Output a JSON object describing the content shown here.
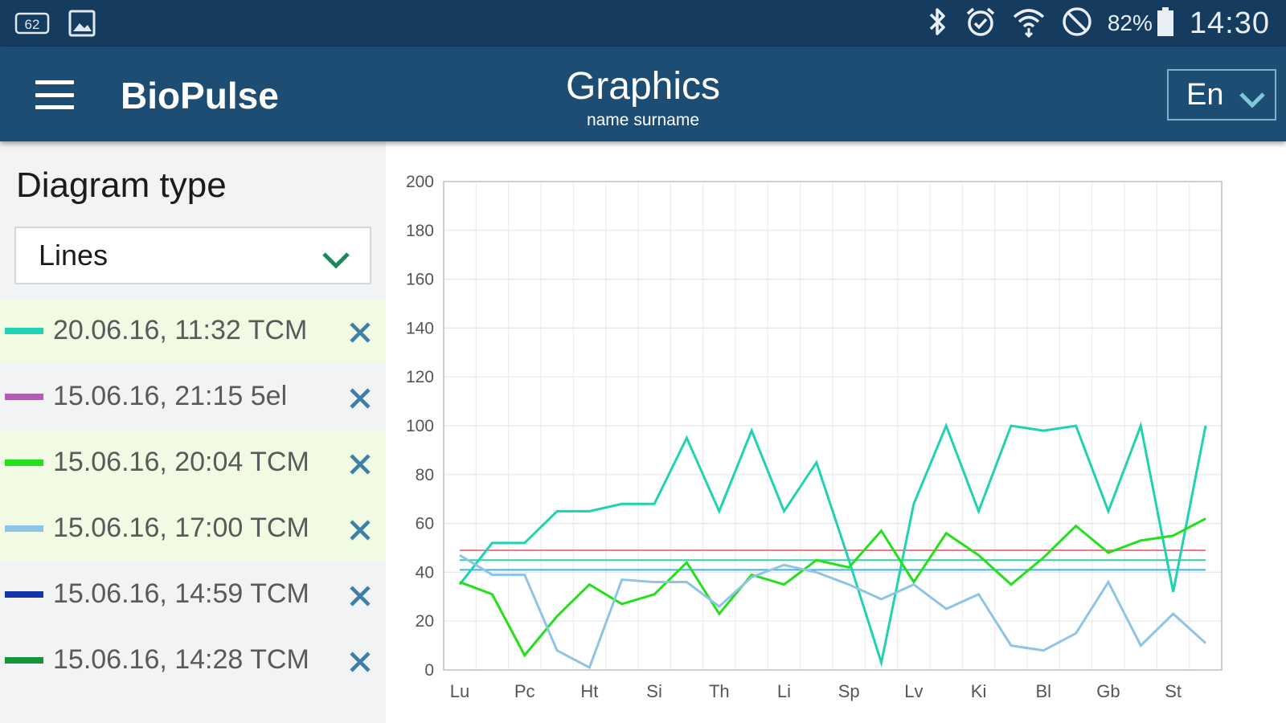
{
  "status_bar": {
    "left_icons": [
      "notification-count-icon",
      "image-icon"
    ],
    "notification_count": "62",
    "right_icons": [
      "bluetooth-icon",
      "alarm-icon",
      "wifi-icon",
      "do-not-disturb-icon",
      "battery-icon"
    ],
    "battery": "82%",
    "time": "14:30"
  },
  "app_bar": {
    "app_name": "BioPulse",
    "page_title": "Graphics",
    "page_subtitle": "name surname",
    "language": "En"
  },
  "sidebar": {
    "diagram_type_label": "Diagram type",
    "diagram_type_value": "Lines",
    "series": [
      {
        "label": "20.06.16, 11:32 TCM",
        "color": "#1fd3b0",
        "selected": true
      },
      {
        "label": "15.06.16, 21:15 5el",
        "color": "#b45bb4",
        "selected": false
      },
      {
        "label": "15.06.16, 20:04 TCM",
        "color": "#22e01a",
        "selected": true
      },
      {
        "label": "15.06.16, 17:00 TCM",
        "color": "#8ec4e6",
        "selected": true
      },
      {
        "label": "15.06.16, 14:59 TCM",
        "color": "#1436a8",
        "selected": false
      },
      {
        "label": "15.06.16, 14:28 TCM",
        "color": "#14953a",
        "selected": false
      }
    ]
  },
  "chart_data": {
    "type": "line",
    "categories": [
      "Lu",
      "",
      "Pc",
      "",
      "Ht",
      "",
      "Si",
      "",
      "Th",
      "",
      "Li",
      "",
      "Sp",
      "",
      "Lv",
      "",
      "Ki",
      "",
      "Bl",
      "",
      "Gb",
      "",
      "St",
      ""
    ],
    "x_tick_labels": [
      "Lu",
      "Pc",
      "Ht",
      "Si",
      "Th",
      "Li",
      "Sp",
      "Lv",
      "Ki",
      "Bl",
      "Gb",
      "St"
    ],
    "y_ticks": [
      0,
      20,
      40,
      60,
      80,
      100,
      120,
      140,
      160,
      180,
      200
    ],
    "ylim": [
      0,
      200
    ],
    "grid": true,
    "series": [
      {
        "color": "#1fd3b0",
        "values": [
          35,
          52,
          52,
          65,
          65,
          68,
          68,
          95,
          65,
          98,
          65,
          85,
          45,
          3,
          68,
          100,
          65,
          100,
          98,
          100,
          65,
          100,
          32,
          100
        ]
      },
      {
        "color": "#22e01a",
        "values": [
          36,
          31,
          6,
          22,
          35,
          27,
          31,
          44,
          23,
          39,
          35,
          45,
          42,
          57,
          36,
          56,
          47,
          35,
          46,
          59,
          48,
          53,
          55,
          62
        ]
      },
      {
        "color": "#8ec4e6",
        "values": [
          47,
          39,
          39,
          8,
          1,
          37,
          36,
          36,
          26,
          38,
          43,
          40,
          35,
          29,
          35,
          25,
          31,
          10,
          8,
          15,
          36,
          10,
          23,
          11
        ]
      }
    ],
    "reference_lines": [
      {
        "value": 49,
        "color": "#f07a8a"
      },
      {
        "value": 45,
        "color": "#35cfa6"
      },
      {
        "value": 41,
        "color": "#3cb4e6"
      }
    ]
  }
}
